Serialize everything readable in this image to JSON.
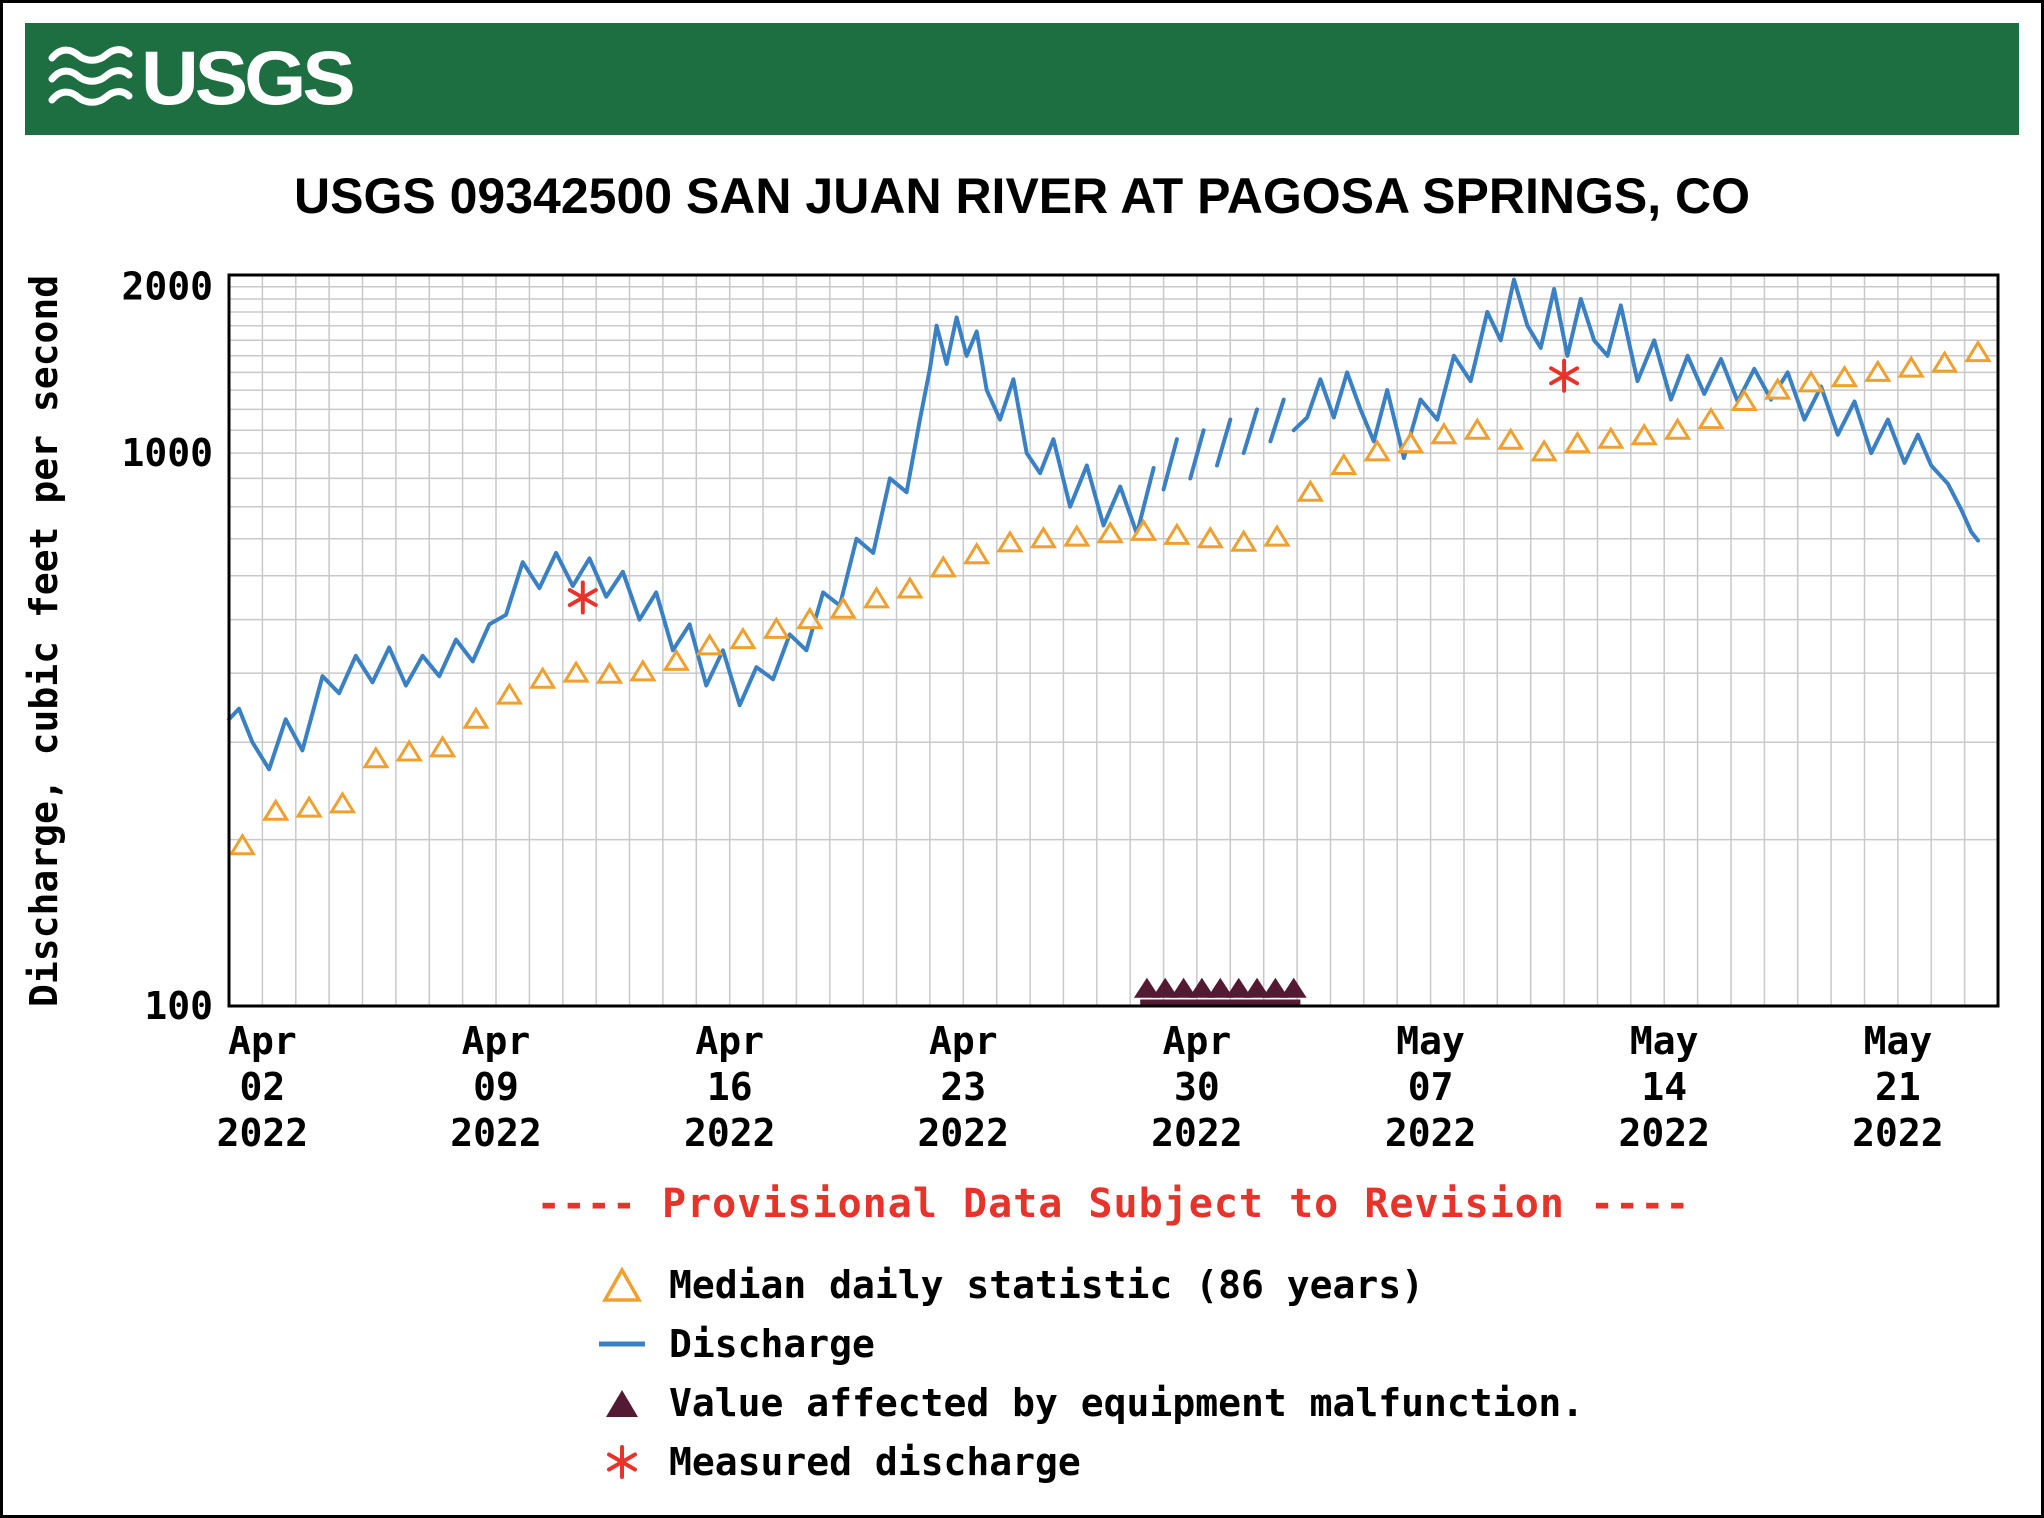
{
  "banner": {
    "logo_text": "USGS",
    "bg_color": "#1d6e40"
  },
  "provisional": {
    "text": "---- Provisional Data Subject to Revision ----",
    "color": "#e8332a"
  },
  "legend": {
    "items": [
      {
        "label": "Median daily statistic (86 years)",
        "symbol": "open-triangle",
        "color": "#f0a030"
      },
      {
        "label": "Discharge",
        "symbol": "line",
        "color": "#3a80c4"
      },
      {
        "label": "Value affected by equipment malfunction.",
        "symbol": "filled-triangle",
        "color": "#551a33"
      },
      {
        "label": "Measured discharge",
        "symbol": "asterisk",
        "color": "#e8332a"
      }
    ]
  },
  "chart_data": {
    "type": "line",
    "title": "USGS 09342500 SAN JUAN RIVER AT PAGOSA SPRINGS, CO",
    "ylabel": "Discharge, cubic feet per second",
    "xlabel": "",
    "y_scale": "log",
    "ylim": [
      100,
      2100
    ],
    "grid": true,
    "grid_color": "#c9c9c9",
    "y_tick_labels": [
      {
        "value": 100,
        "label": "100"
      },
      {
        "value": 1000,
        "label": "1000"
      },
      {
        "value": 2000,
        "label": "2000"
      }
    ],
    "x_unit": "days since 2022-04-01",
    "xlim": [
      0,
      53
    ],
    "x_ticks": [
      {
        "x": 1,
        "lines": [
          "Apr",
          "02",
          "2022"
        ]
      },
      {
        "x": 8,
        "lines": [
          "Apr",
          "09",
          "2022"
        ]
      },
      {
        "x": 15,
        "lines": [
          "Apr",
          "16",
          "2022"
        ]
      },
      {
        "x": 22,
        "lines": [
          "Apr",
          "23",
          "2022"
        ]
      },
      {
        "x": 29,
        "lines": [
          "Apr",
          "30",
          "2022"
        ]
      },
      {
        "x": 36,
        "lines": [
          "May",
          "07",
          "2022"
        ]
      },
      {
        "x": 43,
        "lines": [
          "May",
          "14",
          "2022"
        ]
      },
      {
        "x": 50,
        "lines": [
          "May",
          "21",
          "2022"
        ]
      }
    ],
    "series": [
      {
        "name": "Discharge",
        "type": "line",
        "color": "#3a80c4",
        "segments": [
          [
            [
              0.0,
              330
            ],
            [
              0.3,
              345
            ],
            [
              0.7,
              300
            ],
            [
              1.2,
              268
            ],
            [
              1.7,
              330
            ],
            [
              2.2,
              290
            ],
            [
              2.8,
              395
            ],
            [
              3.3,
              368
            ],
            [
              3.8,
              430
            ],
            [
              4.3,
              385
            ],
            [
              4.8,
              445
            ],
            [
              5.3,
              380
            ],
            [
              5.8,
              430
            ],
            [
              6.3,
              395
            ],
            [
              6.8,
              460
            ],
            [
              7.3,
              420
            ],
            [
              7.8,
              490
            ],
            [
              8.3,
              510
            ],
            [
              8.8,
              635
            ],
            [
              9.3,
              570
            ],
            [
              9.8,
              660
            ],
            [
              10.3,
              575
            ],
            [
              10.8,
              645
            ],
            [
              11.3,
              550
            ],
            [
              11.8,
              610
            ],
            [
              12.3,
              500
            ],
            [
              12.8,
              560
            ],
            [
              13.3,
              440
            ],
            [
              13.8,
              490
            ],
            [
              14.3,
              380
            ],
            [
              14.8,
              440
            ],
            [
              15.3,
              350
            ],
            [
              15.8,
              410
            ],
            [
              16.3,
              390
            ],
            [
              16.8,
              470
            ],
            [
              17.3,
              440
            ],
            [
              17.8,
              560
            ],
            [
              18.3,
              530
            ],
            [
              18.8,
              700
            ],
            [
              19.3,
              660
            ],
            [
              19.8,
              900
            ],
            [
              20.3,
              850
            ],
            [
              20.7,
              1150
            ],
            [
              21.0,
              1420
            ],
            [
              21.2,
              1700
            ],
            [
              21.5,
              1450
            ],
            [
              21.8,
              1760
            ],
            [
              22.1,
              1500
            ],
            [
              22.4,
              1660
            ],
            [
              22.7,
              1300
            ],
            [
              23.1,
              1150
            ],
            [
              23.5,
              1360
            ],
            [
              23.9,
              1000
            ],
            [
              24.3,
              920
            ],
            [
              24.7,
              1060
            ],
            [
              25.2,
              800
            ],
            [
              25.7,
              950
            ],
            [
              26.2,
              740
            ],
            [
              26.7,
              870
            ],
            [
              27.2,
              715
            ],
            [
              27.7,
              940
            ]
          ],
          [
            [
              28.0,
              860
            ],
            [
              28.4,
              1060
            ]
          ],
          [
            [
              28.8,
              900
            ],
            [
              29.2,
              1100
            ]
          ],
          [
            [
              29.6,
              950
            ],
            [
              30.0,
              1150
            ]
          ],
          [
            [
              30.4,
              1000
            ],
            [
              30.8,
              1200
            ]
          ],
          [
            [
              31.2,
              1050
            ],
            [
              31.6,
              1250
            ]
          ],
          [
            [
              31.9,
              1100
            ],
            [
              32.3,
              1160
            ],
            [
              32.7,
              1360
            ],
            [
              33.1,
              1160
            ],
            [
              33.5,
              1400
            ],
            [
              33.9,
              1200
            ],
            [
              34.3,
              1050
            ],
            [
              34.7,
              1300
            ],
            [
              35.2,
              980
            ],
            [
              35.7,
              1250
            ],
            [
              36.2,
              1150
            ],
            [
              36.7,
              1500
            ],
            [
              37.2,
              1350
            ],
            [
              37.7,
              1800
            ],
            [
              38.1,
              1600
            ],
            [
              38.5,
              2060
            ],
            [
              38.9,
              1700
            ],
            [
              39.3,
              1550
            ],
            [
              39.7,
              1980
            ],
            [
              40.1,
              1500
            ],
            [
              40.5,
              1900
            ],
            [
              40.9,
              1600
            ],
            [
              41.3,
              1500
            ],
            [
              41.7,
              1850
            ],
            [
              42.2,
              1350
            ],
            [
              42.7,
              1600
            ],
            [
              43.2,
              1250
            ],
            [
              43.7,
              1500
            ],
            [
              44.2,
              1280
            ],
            [
              44.7,
              1480
            ],
            [
              45.2,
              1240
            ],
            [
              45.7,
              1420
            ],
            [
              46.2,
              1250
            ],
            [
              46.7,
              1400
            ],
            [
              47.2,
              1150
            ],
            [
              47.7,
              1320
            ],
            [
              48.2,
              1080
            ],
            [
              48.7,
              1240
            ],
            [
              49.2,
              1000
            ],
            [
              49.7,
              1150
            ],
            [
              50.2,
              960
            ],
            [
              50.6,
              1080
            ],
            [
              51.0,
              950
            ],
            [
              51.5,
              880
            ],
            [
              51.9,
              790
            ],
            [
              52.2,
              720
            ],
            [
              52.4,
              695
            ]
          ]
        ]
      },
      {
        "name": "Median daily statistic (86 years)",
        "type": "open-triangle",
        "color": "#f0a030",
        "points": [
          [
            0.4,
            195
          ],
          [
            1.4,
            225
          ],
          [
            2.4,
            228
          ],
          [
            3.4,
            232
          ],
          [
            4.4,
            280
          ],
          [
            5.4,
            288
          ],
          [
            6.4,
            293
          ],
          [
            7.4,
            330
          ],
          [
            8.4,
            365
          ],
          [
            9.4,
            390
          ],
          [
            10.4,
            400
          ],
          [
            11.4,
            398
          ],
          [
            12.4,
            402
          ],
          [
            13.4,
            420
          ],
          [
            14.4,
            448
          ],
          [
            15.4,
            460
          ],
          [
            16.4,
            480
          ],
          [
            17.4,
            500
          ],
          [
            18.4,
            522
          ],
          [
            19.4,
            545
          ],
          [
            20.4,
            568
          ],
          [
            21.4,
            620
          ],
          [
            22.4,
            655
          ],
          [
            23.4,
            688
          ],
          [
            24.4,
            700
          ],
          [
            25.4,
            705
          ],
          [
            26.4,
            715
          ],
          [
            27.4,
            722
          ],
          [
            28.4,
            710
          ],
          [
            29.4,
            700
          ],
          [
            30.4,
            690
          ],
          [
            31.4,
            705
          ],
          [
            32.4,
            850
          ],
          [
            33.4,
            950
          ],
          [
            34.4,
            1005
          ],
          [
            35.4,
            1040
          ],
          [
            36.4,
            1080
          ],
          [
            37.4,
            1100
          ],
          [
            38.4,
            1055
          ],
          [
            39.4,
            1005
          ],
          [
            40.4,
            1040
          ],
          [
            41.4,
            1060
          ],
          [
            42.4,
            1075
          ],
          [
            43.4,
            1100
          ],
          [
            44.4,
            1150
          ],
          [
            45.4,
            1240
          ],
          [
            46.4,
            1300
          ],
          [
            47.4,
            1340
          ],
          [
            48.4,
            1370
          ],
          [
            49.4,
            1400
          ],
          [
            50.4,
            1425
          ],
          [
            51.4,
            1455
          ],
          [
            52.4,
            1520
          ]
        ]
      },
      {
        "name": "Value affected by equipment malfunction.",
        "type": "filled-triangle",
        "color": "#551a33",
        "baseline": {
          "x1": 27.3,
          "x2": 32.1,
          "y": 100
        },
        "points": [
          [
            27.5,
            107
          ],
          [
            28.05,
            107
          ],
          [
            28.6,
            107
          ],
          [
            29.15,
            107
          ],
          [
            29.7,
            107
          ],
          [
            30.25,
            107
          ],
          [
            30.8,
            107
          ],
          [
            31.35,
            107
          ],
          [
            31.9,
            107
          ]
        ]
      },
      {
        "name": "Measured discharge",
        "type": "asterisk",
        "color": "#e8332a",
        "points": [
          [
            10.6,
            548
          ],
          [
            40.0,
            1380
          ]
        ]
      }
    ]
  }
}
